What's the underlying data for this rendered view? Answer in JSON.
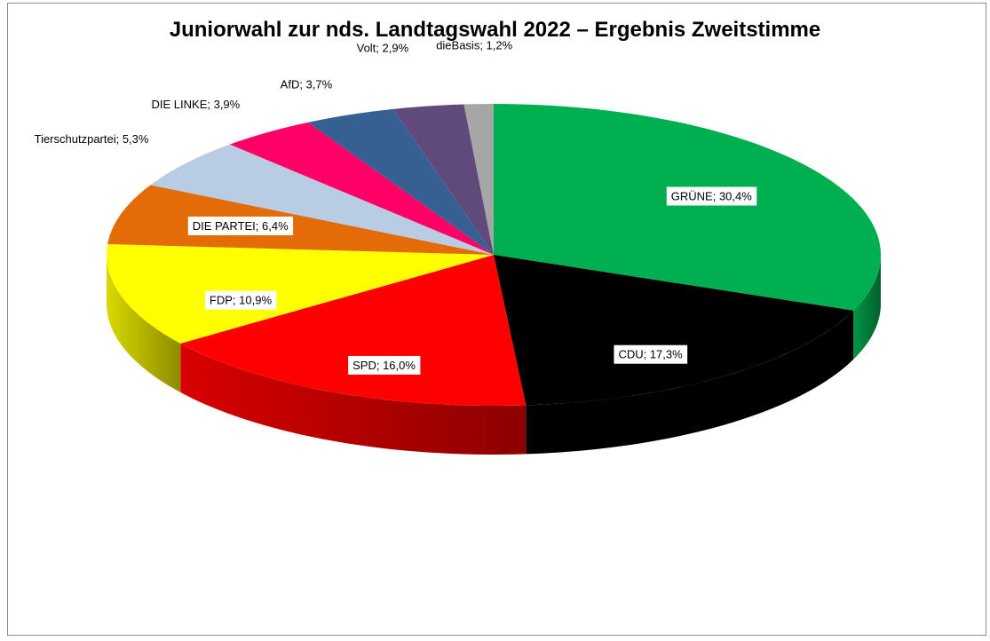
{
  "chart_data": {
    "type": "pie",
    "title": "Juniorwahl zur nds. Landtagswahl 2022 – Ergebnis Zweitstimme",
    "slices": [
      {
        "label": "GRÜNE",
        "value": 30.4,
        "display": "GRÜNE; 30,4%",
        "color": "#00b050",
        "boxed": true
      },
      {
        "label": "CDU",
        "value": 17.3,
        "display": "CDU; 17,3%",
        "color": "#000000",
        "boxed": true
      },
      {
        "label": "SPD",
        "value": 16.0,
        "display": "SPD; 16,0%",
        "color": "#ff0000",
        "boxed": true
      },
      {
        "label": "FDP",
        "value": 10.9,
        "display": "FDP; 10,9%",
        "color": "#ffff00",
        "boxed": true
      },
      {
        "label": "DIE PARTEI",
        "value": 6.4,
        "display": "DIE PARTEI; 6,4%",
        "color": "#e36c09",
        "boxed": true
      },
      {
        "label": "Tierschutzpartei",
        "value": 5.3,
        "display": "Tierschutzpartei; 5,3%",
        "color": "#b8cce4",
        "boxed": false
      },
      {
        "label": "DIE LINKE",
        "value": 3.9,
        "display": "DIE LINKE; 3,9%",
        "color": "#ff0066",
        "boxed": false
      },
      {
        "label": "AfD",
        "value": 3.7,
        "display": "AfD; 3,7%",
        "color": "#376092",
        "boxed": false
      },
      {
        "label": "Volt",
        "value": 2.9,
        "display": "Volt; 2,9%",
        "color": "#604a7b",
        "boxed": false
      },
      {
        "label": "dieBasis",
        "value": 1.2,
        "display": "dieBasis; 1,2%",
        "color": "#a6a6a6",
        "boxed": false
      }
    ],
    "style": "3d-pie",
    "legend": "none"
  }
}
